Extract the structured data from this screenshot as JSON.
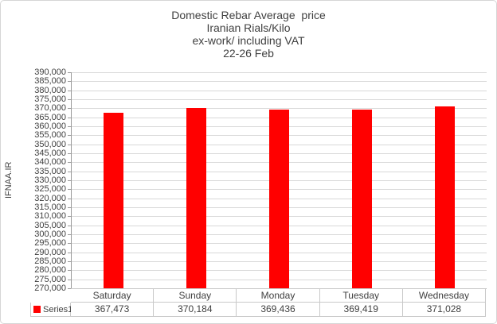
{
  "chart_data": {
    "type": "bar",
    "title_lines": {
      "0": "Domestic Rebar Average  price",
      "1": "Iranian Rials/Kilo",
      "2": "ex-work/ including VAT",
      "3": "22-26 Feb"
    },
    "categories": [
      "Saturday",
      "Sunday",
      "Monday",
      "Tuesday",
      "Wednesday"
    ],
    "series": [
      {
        "name": "Series1",
        "values": [
          367473,
          370184,
          369436,
          369419,
          371028
        ]
      }
    ],
    "ylabel": "IFNAA.IR",
    "ylim": [
      270000,
      390000
    ],
    "ytick_step": 5000,
    "bar_color": "#ff0000",
    "gridline_color": "#d9d9d9",
    "axis_color": "#9a9a9a",
    "legend_position": "table-left",
    "grid": "horizontal-on"
  }
}
